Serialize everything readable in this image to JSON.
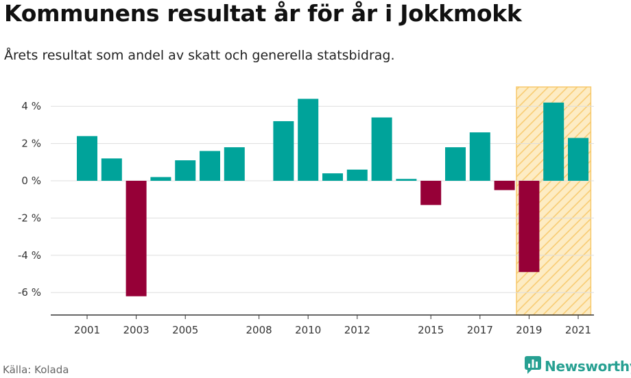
{
  "header": {
    "title": "Kommunens resultat år för år i Jokkmokk",
    "subtitle": "Årets resultat som andel av skatt och generella statsbidrag."
  },
  "footer": {
    "source": "Källa: Kolada",
    "brand": "Newsworthy",
    "brand_icon": "newsworthy-logo-icon"
  },
  "colors": {
    "positive": "#00a39a",
    "negative": "#960037",
    "highlight_fill": "#fdecc4",
    "highlight_stripe": "#f7c96c",
    "grid": "#dddddd",
    "brand": "#27a092"
  },
  "chart_data": {
    "type": "bar",
    "x": [
      2001,
      2002,
      2003,
      2004,
      2005,
      2006,
      2007,
      2008,
      2009,
      2010,
      2011,
      2012,
      2013,
      2014,
      2015,
      2016,
      2017,
      2018,
      2019,
      2020,
      2021
    ],
    "values": [
      2.4,
      1.2,
      -6.2,
      0.2,
      1.1,
      1.6,
      1.8,
      null,
      3.2,
      4.4,
      0.4,
      0.6,
      3.4,
      0.1,
      -1.3,
      1.8,
      2.6,
      -0.5,
      -4.9,
      4.2,
      2.3
    ],
    "x_tick_labels": [
      "2001",
      "2003",
      "2005",
      "2008",
      "2010",
      "2012",
      "2015",
      "2017",
      "2019",
      "2021"
    ],
    "y_ticks": [
      4,
      2,
      0,
      -2,
      -4,
      -6
    ],
    "y_tick_labels": [
      "4 %",
      "2 %",
      "0 %",
      "-2 %",
      "-4 %",
      "-6 %"
    ],
    "ylim": [
      -7.2,
      5.1
    ],
    "highlight_range": [
      2019,
      2021
    ],
    "grid": true,
    "legend": "none"
  }
}
